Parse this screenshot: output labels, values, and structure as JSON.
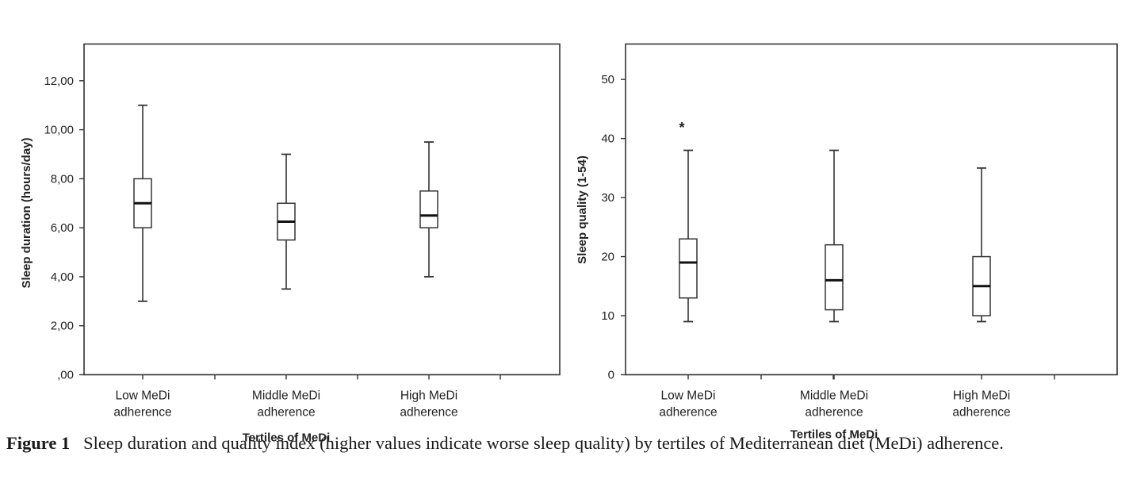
{
  "chart_data": [
    {
      "type": "box",
      "xlabel": "Tertiles of MeDi",
      "ylabel": "Sleep duration (hours/day)",
      "ylim": [
        0,
        13.5
      ],
      "yticks": [
        0,
        2,
        4,
        6,
        8,
        10,
        12
      ],
      "ytick_labels": [
        ",00",
        "2,00",
        "4,00",
        "6,00",
        "8,00",
        "10,00",
        "12,00"
      ],
      "categories": [
        [
          "Low MeDi",
          "adherence"
        ],
        [
          "Middle MeDi",
          "adherence"
        ],
        [
          "High MeDi",
          "adherence"
        ]
      ],
      "boxes": [
        {
          "whisker_low": 3.0,
          "q1": 6.0,
          "median": 7.0,
          "q3": 8.0,
          "whisker_high": 11.0,
          "outliers": []
        },
        {
          "whisker_low": 3.5,
          "q1": 5.5,
          "median": 6.25,
          "q3": 7.0,
          "whisker_high": 9.0,
          "outliers": []
        },
        {
          "whisker_low": 4.0,
          "q1": 6.0,
          "median": 6.5,
          "q3": 7.5,
          "whisker_high": 9.5,
          "outliers": []
        }
      ],
      "grid": false
    },
    {
      "type": "box",
      "xlabel": "Tertiles of MeDi",
      "ylabel": "Sleep quality (1-54)",
      "ylim": [
        0,
        56
      ],
      "yticks": [
        0,
        10,
        20,
        30,
        40,
        50
      ],
      "ytick_labels": [
        "0",
        "10",
        "20",
        "30",
        "40",
        "50"
      ],
      "categories": [
        [
          "Low MeDi",
          "adherence"
        ],
        [
          "Middle MeDi",
          "adherence"
        ],
        [
          "High MeDi",
          "adherence"
        ]
      ],
      "boxes": [
        {
          "whisker_low": 9,
          "q1": 13,
          "median": 19,
          "q3": 23,
          "whisker_high": 38,
          "outliers": [
            42
          ]
        },
        {
          "whisker_low": 9,
          "q1": 11,
          "median": 16,
          "q3": 22,
          "whisker_high": 38,
          "outliers": []
        },
        {
          "whisker_low": 9,
          "q1": 10,
          "median": 15,
          "q3": 20,
          "whisker_high": 35,
          "outliers": []
        }
      ],
      "outlier_marker": "*",
      "grid": false
    }
  ],
  "caption": {
    "label": "Figure 1",
    "text": "Sleep duration and quality index (higher values indicate worse sleep quality) by tertiles of Mediterranean diet (MeDi) adherence."
  }
}
